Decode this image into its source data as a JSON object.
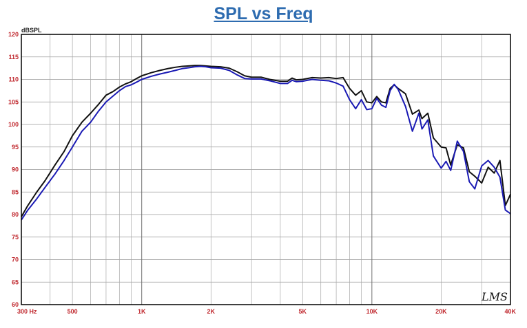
{
  "chart_data": {
    "type": "line",
    "title": "SPL vs Freq",
    "ylabel": "dBSPL",
    "xlabel": "",
    "x_scale": "log",
    "xlim": [
      300,
      40000
    ],
    "ylim": [
      60,
      120
    ],
    "grid": true,
    "y_ticks": [
      120,
      115,
      110,
      105,
      100,
      95,
      90,
      85,
      80,
      75,
      70,
      65,
      60
    ],
    "x_tick_labels": [
      {
        "value": 300,
        "label": "300  Hz"
      },
      {
        "value": 500,
        "label": "500"
      },
      {
        "value": 1000,
        "label": "1K"
      },
      {
        "value": 2000,
        "label": "2K"
      },
      {
        "value": 5000,
        "label": "5K"
      },
      {
        "value": 10000,
        "label": "10K"
      },
      {
        "value": 20000,
        "label": "20K"
      },
      {
        "value": 40000,
        "label": "40K"
      }
    ],
    "watermark": "LMS",
    "colors": {
      "series_1": "#111111",
      "series_2": "#1a1ab4",
      "title": "#2e6cb0",
      "tick_labels": "#c0282e"
    },
    "series": [
      {
        "color": "#111111",
        "points": [
          [
            300,
            79.5
          ],
          [
            320,
            82
          ],
          [
            350,
            85
          ],
          [
            380,
            87.5
          ],
          [
            420,
            91
          ],
          [
            460,
            94
          ],
          [
            500,
            97.5
          ],
          [
            550,
            100.5
          ],
          [
            600,
            102.5
          ],
          [
            650,
            104.5
          ],
          [
            700,
            106.5
          ],
          [
            750,
            107.3
          ],
          [
            800,
            108.3
          ],
          [
            850,
            109
          ],
          [
            900,
            109.5
          ],
          [
            950,
            110.2
          ],
          [
            1000,
            110.8
          ],
          [
            1100,
            111.5
          ],
          [
            1200,
            112
          ],
          [
            1300,
            112.4
          ],
          [
            1400,
            112.7
          ],
          [
            1500,
            112.9
          ],
          [
            1600,
            113
          ],
          [
            1700,
            113.1
          ],
          [
            1800,
            113.1
          ],
          [
            1900,
            113
          ],
          [
            2000,
            112.9
          ],
          [
            2200,
            112.8
          ],
          [
            2400,
            112.5
          ],
          [
            2600,
            111.7
          ],
          [
            2800,
            110.8
          ],
          [
            3000,
            110.5
          ],
          [
            3300,
            110.5
          ],
          [
            3600,
            110
          ],
          [
            4000,
            109.6
          ],
          [
            4300,
            109.6
          ],
          [
            4500,
            110.3
          ],
          [
            4700,
            109.9
          ],
          [
            5000,
            110
          ],
          [
            5500,
            110.4
          ],
          [
            6000,
            110.3
          ],
          [
            6500,
            110.4
          ],
          [
            7000,
            110.2
          ],
          [
            7500,
            110.4
          ],
          [
            8000,
            108
          ],
          [
            8500,
            106.5
          ],
          [
            9000,
            107.5
          ],
          [
            9500,
            105
          ],
          [
            10000,
            104.8
          ],
          [
            10500,
            106.2
          ],
          [
            11000,
            105
          ],
          [
            11500,
            104.8
          ],
          [
            12000,
            108
          ],
          [
            12500,
            108.8
          ],
          [
            13000,
            108
          ],
          [
            14000,
            106.8
          ],
          [
            15000,
            102.3
          ],
          [
            16000,
            103.2
          ],
          [
            16500,
            101.3
          ],
          [
            17500,
            102.5
          ],
          [
            18500,
            97
          ],
          [
            20000,
            95
          ],
          [
            21000,
            94.8
          ],
          [
            22000,
            91
          ],
          [
            23500,
            95.5
          ],
          [
            25000,
            94.8
          ],
          [
            26500,
            89.5
          ],
          [
            28000,
            88.5
          ],
          [
            30000,
            87
          ],
          [
            32000,
            90.5
          ],
          [
            34000,
            89.2
          ],
          [
            36000,
            92
          ],
          [
            38000,
            82
          ],
          [
            40000,
            84.5
          ]
        ]
      },
      {
        "color": "#1a1ab4",
        "points": [
          [
            300,
            78.8
          ],
          [
            320,
            81
          ],
          [
            350,
            83.5
          ],
          [
            380,
            86
          ],
          [
            420,
            89
          ],
          [
            460,
            92
          ],
          [
            500,
            95
          ],
          [
            550,
            98.5
          ],
          [
            600,
            100.5
          ],
          [
            650,
            103
          ],
          [
            700,
            105
          ],
          [
            750,
            106.3
          ],
          [
            800,
            107.5
          ],
          [
            850,
            108.4
          ],
          [
            900,
            108.8
          ],
          [
            950,
            109.4
          ],
          [
            1000,
            110
          ],
          [
            1100,
            110.7
          ],
          [
            1200,
            111.2
          ],
          [
            1300,
            111.6
          ],
          [
            1400,
            112
          ],
          [
            1500,
            112.4
          ],
          [
            1600,
            112.6
          ],
          [
            1700,
            112.8
          ],
          [
            1800,
            112.9
          ],
          [
            1900,
            112.8
          ],
          [
            2000,
            112.6
          ],
          [
            2200,
            112.5
          ],
          [
            2400,
            112
          ],
          [
            2600,
            111
          ],
          [
            2800,
            110.2
          ],
          [
            3000,
            110.1
          ],
          [
            3300,
            110.1
          ],
          [
            3600,
            109.7
          ],
          [
            4000,
            109.1
          ],
          [
            4300,
            109.1
          ],
          [
            4500,
            109.8
          ],
          [
            4700,
            109.5
          ],
          [
            5000,
            109.6
          ],
          [
            5500,
            110
          ],
          [
            6000,
            109.8
          ],
          [
            6500,
            109.7
          ],
          [
            7000,
            109.2
          ],
          [
            7500,
            108.5
          ],
          [
            8000,
            105.5
          ],
          [
            8500,
            103.5
          ],
          [
            9000,
            105.5
          ],
          [
            9500,
            103.3
          ],
          [
            10000,
            103.5
          ],
          [
            10500,
            105.8
          ],
          [
            11000,
            104.3
          ],
          [
            11500,
            103.8
          ],
          [
            12000,
            107.5
          ],
          [
            12500,
            108.9
          ],
          [
            13000,
            107.8
          ],
          [
            14000,
            104
          ],
          [
            15000,
            98.5
          ],
          [
            16000,
            102.5
          ],
          [
            16500,
            99
          ],
          [
            17500,
            101
          ],
          [
            18500,
            93
          ],
          [
            20000,
            90.3
          ],
          [
            21000,
            91.8
          ],
          [
            22000,
            89.8
          ],
          [
            23500,
            96.3
          ],
          [
            25000,
            94
          ],
          [
            26500,
            87.3
          ],
          [
            28000,
            85.7
          ],
          [
            30000,
            90.8
          ],
          [
            32000,
            92
          ],
          [
            34000,
            90.5
          ],
          [
            36000,
            88.3
          ],
          [
            38000,
            81
          ],
          [
            40000,
            80.2
          ]
        ]
      }
    ]
  }
}
